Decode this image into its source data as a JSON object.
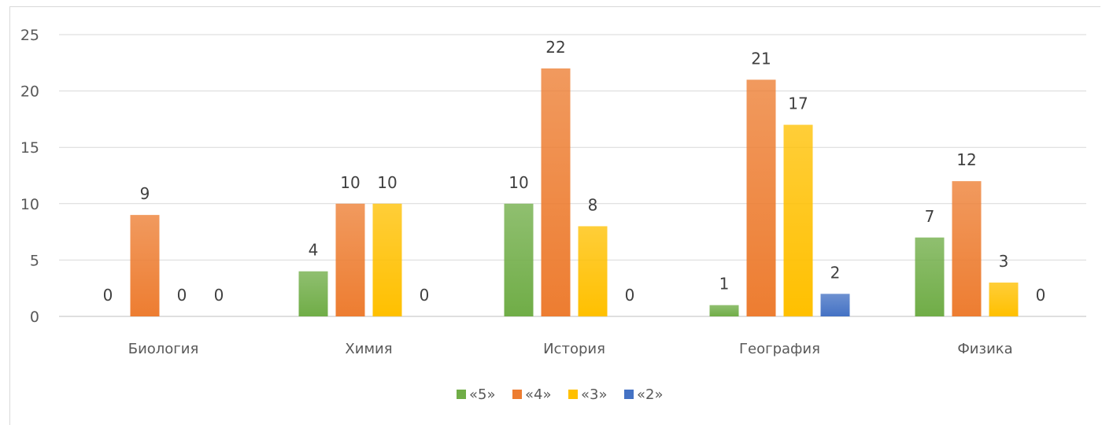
{
  "chart_data": {
    "type": "bar",
    "title": "",
    "xlabel": "",
    "ylabel": "",
    "ylim": [
      0,
      25
    ],
    "yticks": [
      0,
      5,
      10,
      15,
      20,
      25
    ],
    "grid": true,
    "legend_position": "bottom",
    "categories": [
      "Биология",
      "Химия",
      "История",
      "География",
      "Физика"
    ],
    "series": [
      {
        "name": "«5»",
        "color": "#70ad47",
        "values": [
          0,
          4,
          10,
          1,
          7
        ]
      },
      {
        "name": "«4»",
        "color": "#ed7d31",
        "values": [
          9,
          10,
          22,
          21,
          12
        ]
      },
      {
        "name": "«3»",
        "color": "#ffc000",
        "values": [
          0,
          10,
          8,
          17,
          3
        ]
      },
      {
        "name": "«2»",
        "color": "#4472c4",
        "values": [
          0,
          0,
          0,
          2,
          0
        ]
      }
    ]
  }
}
